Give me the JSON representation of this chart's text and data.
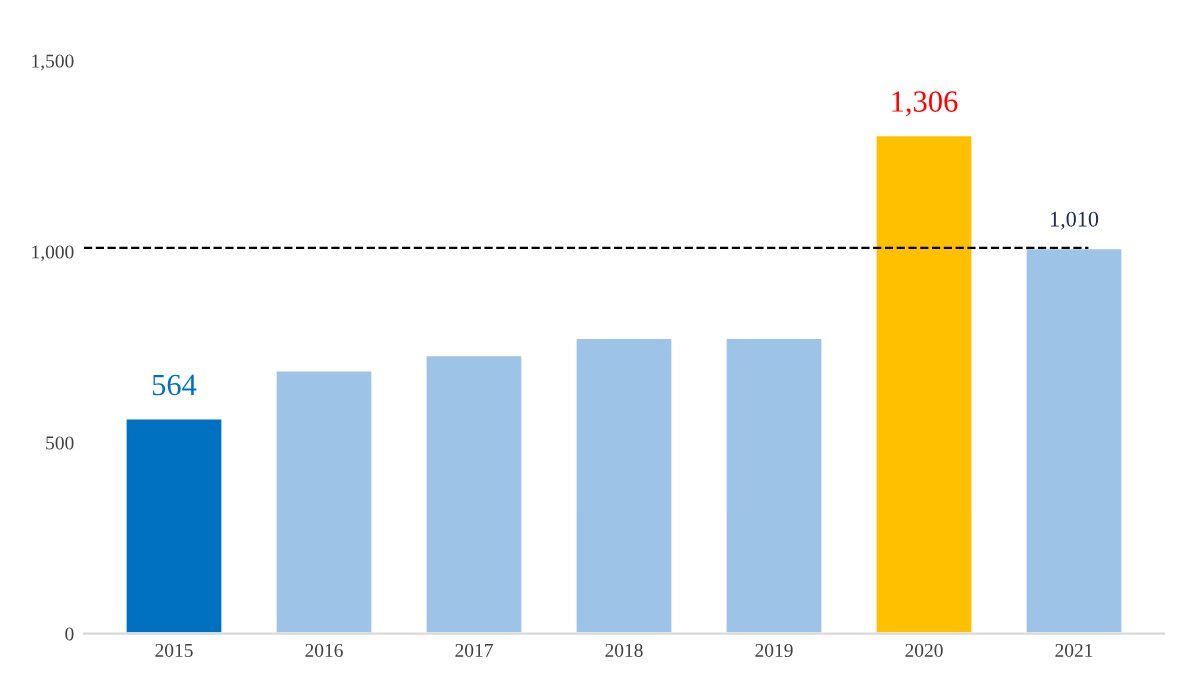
{
  "chart_data": {
    "type": "bar",
    "categories": [
      "2015",
      "2016",
      "2017",
      "2018",
      "2019",
      "2020",
      "2021"
    ],
    "values": [
      564,
      690,
      730,
      775,
      775,
      1306,
      1010
    ],
    "colors": [
      "#0070c0",
      "#9dc3e6",
      "#9dc3e6",
      "#9dc3e6",
      "#9dc3e6",
      "#ffc000",
      "#9dc3e6"
    ],
    "value_labels": [
      "564",
      null,
      null,
      null,
      null,
      "1,306",
      "1,010"
    ],
    "ylim": [
      0,
      1500
    ],
    "yticks": [
      {
        "value": 0,
        "label": "0"
      },
      {
        "value": 500,
        "label": "500"
      },
      {
        "value": 1000,
        "label": "1,000"
      },
      {
        "value": 1500,
        "label": "1,500"
      }
    ],
    "ref_lines": [
      {
        "axis": "y",
        "value": 1010,
        "color": "#000000",
        "line_style": "dashed"
      }
    ],
    "grid": false,
    "legend": false
  }
}
